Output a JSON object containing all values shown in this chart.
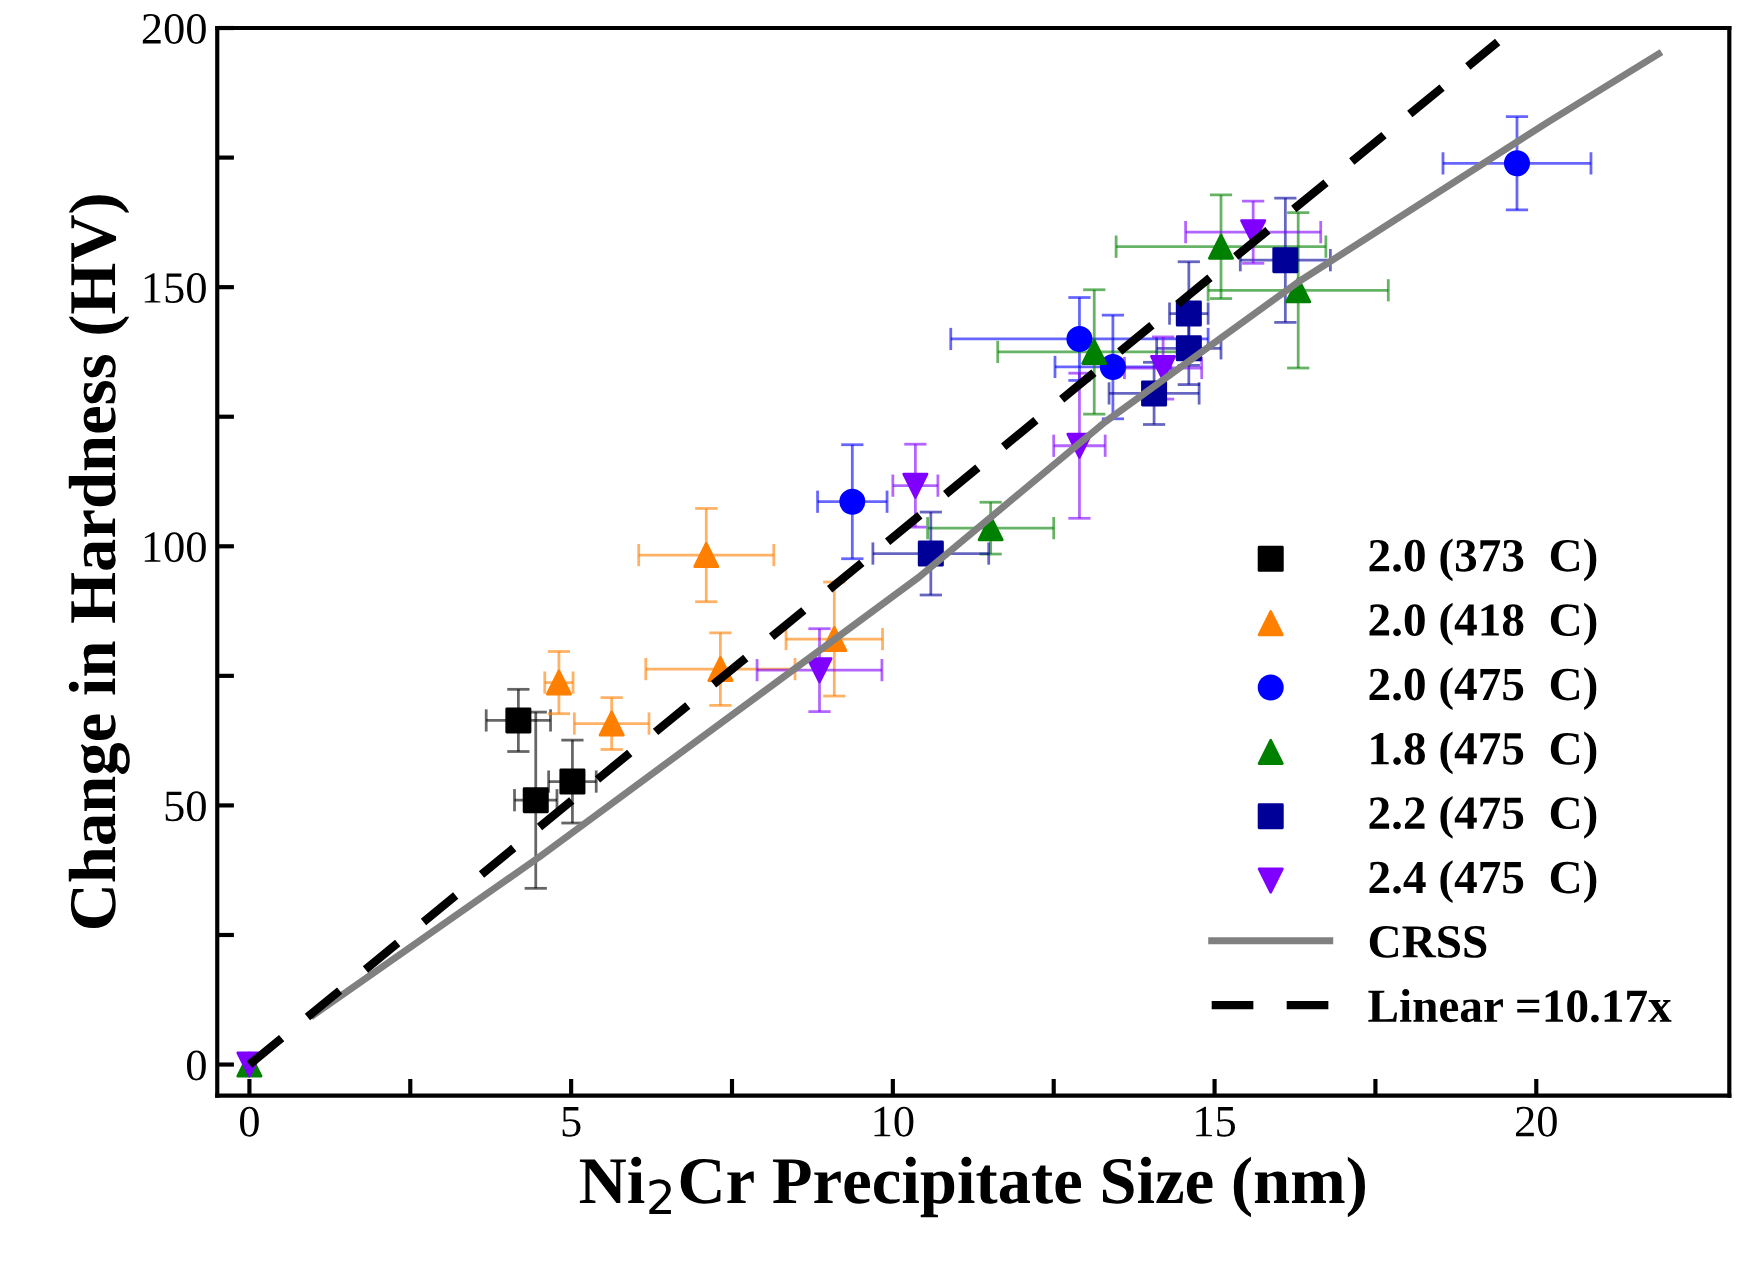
{
  "chart_data": {
    "type": "scatter",
    "xlabel": "Ni$_{2}$Cr Precipitate Size (nm)",
    "ylabel": "Change in Hardness (HV)",
    "xlim": [
      -0.5,
      23
    ],
    "ylim": [
      -6,
      200
    ],
    "xticks": [
      0,
      {
        "value": 2.5,
        "label": null
      },
      5,
      {
        "value": 7.5,
        "label": null
      },
      10,
      {
        "value": 12.5,
        "label": null
      },
      15,
      {
        "value": 17.5,
        "label": null
      },
      20
    ],
    "yticks": [
      0,
      {
        "value": 25,
        "label": null
      },
      50,
      {
        "value": 75,
        "label": null
      },
      100,
      {
        "value": 125,
        "label": null
      },
      150,
      {
        "value": 175,
        "label": null
      },
      200
    ],
    "grid": false,
    "legend": "lower right",
    "series": [
      {
        "name": "2.0 (373  C)",
        "color": "#000000",
        "marker": "square",
        "x": [
          4.18,
          4.45,
          5.02
        ],
        "values": [
          66.4,
          51,
          54.6
        ],
        "errors": [
          6,
          17,
          8
        ],
        "xerrors": [
          0.5,
          0.33,
          0.37
        ]
      },
      {
        "name": "2.0 (418  C)",
        "color": "#ff7f00",
        "marker": "triangle",
        "x": [
          4.81,
          5.63,
          7.1,
          7.32,
          9.09
        ],
        "values": [
          73.7,
          65.8,
          98.3,
          76.3,
          82.1
        ],
        "errors": [
          6,
          5,
          9,
          7,
          11
        ],
        "xerrors": [
          0.22,
          0.58,
          1.05,
          1.16,
          0.75
        ]
      },
      {
        "name": "2.0 (475  C)",
        "color": "#0000ff",
        "marker": "circle",
        "x": [
          9.37,
          12.9,
          13.42,
          19.7
        ],
        "values": [
          108.6,
          140,
          134.6,
          173.9
        ],
        "errors": [
          11,
          8,
          10,
          9
        ],
        "xerrors": [
          0.54,
          2,
          0.9,
          1.15
        ]
      },
      {
        "name": "1.8 (475  C)",
        "color": "#008000",
        "marker": "triangle",
        "x": [
          0,
          11.52,
          13.13,
          15.1,
          16.3
        ],
        "values": [
          0,
          103.5,
          137.5,
          157.8,
          149.4
        ],
        "errors": [
          null,
          5,
          12,
          10,
          15
        ],
        "xerrors": [
          null,
          0.98,
          1.5,
          1.63,
          1.4
        ]
      },
      {
        "name": "2.2 (475  C)",
        "color": "#000099",
        "marker": "square",
        "x": [
          10.59,
          14.06,
          14.6,
          14.6,
          16.1
        ],
        "values": [
          98.6,
          129.5,
          138.2,
          144.9,
          155.2
        ],
        "errors": [
          8,
          6,
          7,
          10,
          12
        ],
        "xerrors": [
          0.9,
          0.7,
          0.5,
          0.3,
          0.7
        ]
      },
      {
        "name": "2.4 (475  C)",
        "color": "#8000ff",
        "marker": "triangle_down",
        "x": [
          0,
          8.86,
          10.35,
          12.9,
          14.2,
          15.6
        ],
        "values": [
          0,
          76.1,
          111.7,
          119.4,
          134.4,
          160.6
        ],
        "errors": [
          null,
          8,
          8,
          14,
          6,
          6
        ],
        "xerrors": [
          null,
          0.97,
          0.35,
          0.4,
          0.6,
          1.05
        ]
      },
      {
        "name": "CRSS",
        "type": "line",
        "color": "#808080",
        "line_style": "solid",
        "x": [
          1,
          4.5,
          10.4,
          13.3,
          16.3,
          20.2,
          21.9
        ],
        "values": [
          9.6,
          40,
          94,
          124,
          151,
          182,
          195
        ]
      },
      {
        "name": "Linear =10.17x",
        "type": "line",
        "color": "#000000",
        "line_style": "dashed",
        "x": [
          0,
          19.4
        ],
        "values": [
          0,
          197.3
        ]
      }
    ]
  }
}
